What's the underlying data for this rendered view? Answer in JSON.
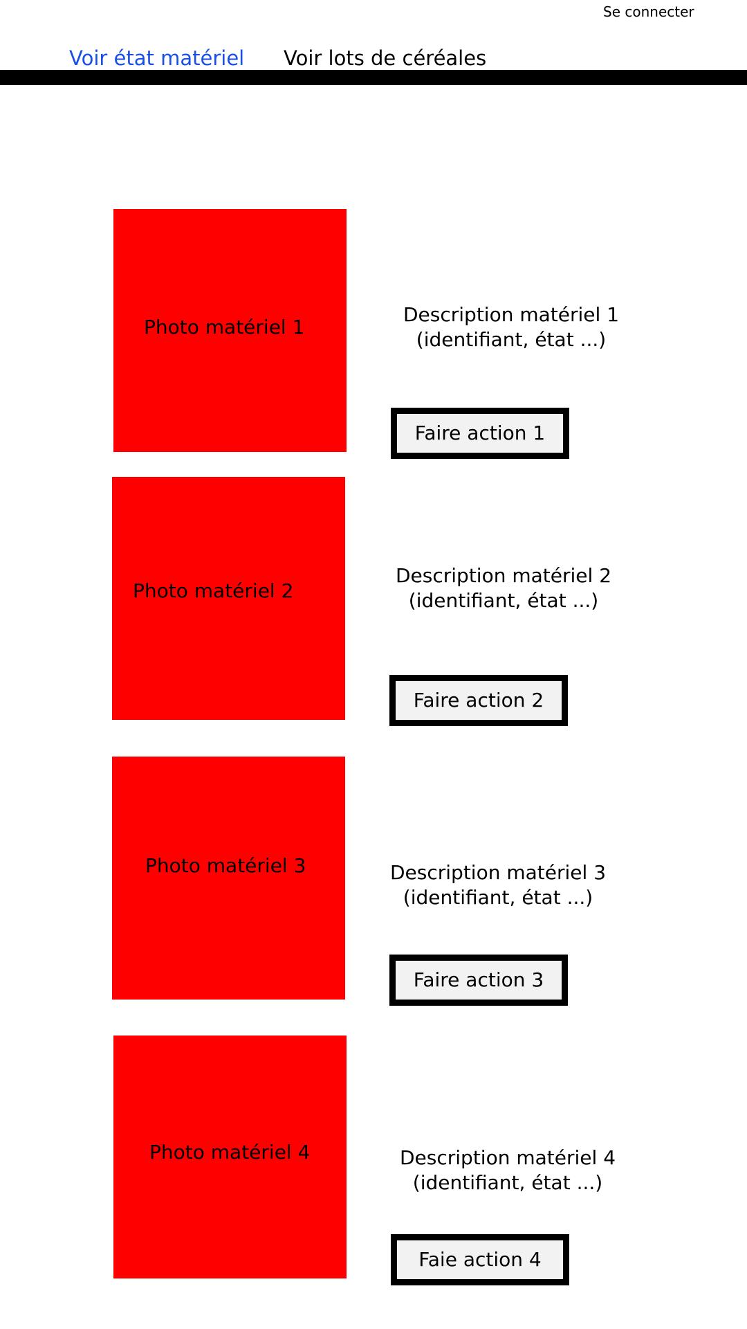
{
  "header": {
    "login_label": "Se connecter"
  },
  "nav": {
    "tabs": [
      {
        "label": "Voir état matériel",
        "active": true
      },
      {
        "label": "Voir lots de céréales",
        "active": false
      }
    ],
    "active_color": "#1a4fe6"
  },
  "items": [
    {
      "photo_label": "Photo matériel 1",
      "description_line1": "Description matériel 1",
      "description_line2": "(identifiant, état ...)",
      "action_label": "Faire action 1"
    },
    {
      "photo_label": "Photo matériel 2",
      "description_line1": "Description matériel 2",
      "description_line2": "(identifiant, état ...)",
      "action_label": "Faire action 2"
    },
    {
      "photo_label": "Photo matériel 3",
      "description_line1": "Description matériel 3",
      "description_line2": "(identifiant, état ...)",
      "action_label": "Faire action 3"
    },
    {
      "photo_label": "Photo matériel 4",
      "description_line1": "Description matériel 4",
      "description_line2": "(identifiant, état ...)",
      "action_label": "Faie action 4"
    }
  ],
  "colors": {
    "photo_placeholder": "#ff0000",
    "button_background": "#f2f2f2"
  }
}
